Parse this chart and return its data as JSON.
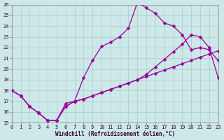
{
  "xlabel": "Windchill (Refroidissement éolien,°C)",
  "xlim": [
    0,
    23
  ],
  "ylim": [
    15,
    26
  ],
  "xticks": [
    0,
    1,
    2,
    3,
    4,
    5,
    6,
    7,
    8,
    9,
    10,
    11,
    12,
    13,
    14,
    15,
    16,
    17,
    18,
    19,
    20,
    21,
    22,
    23
  ],
  "yticks": [
    15,
    16,
    17,
    18,
    19,
    20,
    21,
    22,
    23,
    24,
    25,
    26
  ],
  "bg_color": "#cde8e8",
  "grid_color": "#aacccc",
  "line_color": "#990099",
  "line1_x": [
    0,
    1,
    2,
    3,
    4,
    5,
    6,
    7,
    8,
    9,
    10,
    11,
    12,
    13,
    14,
    15,
    16,
    17,
    18,
    19,
    20,
    21,
    22,
    23
  ],
  "line1_y": [
    18.0,
    17.5,
    16.5,
    15.9,
    15.2,
    15.2,
    16.8,
    17.0,
    19.2,
    20.8,
    22.1,
    22.5,
    23.0,
    23.8,
    26.2,
    25.7,
    25.2,
    24.3,
    24.0,
    23.2,
    21.8,
    22.0,
    21.8,
    20.8
  ],
  "line2_x": [
    0,
    1,
    2,
    3,
    4,
    5,
    6,
    7,
    8,
    9,
    10,
    11,
    12,
    13,
    14,
    15,
    16,
    17,
    18,
    19,
    20,
    21,
    22,
    23
  ],
  "line2_y": [
    18.0,
    17.5,
    16.5,
    15.9,
    15.2,
    15.2,
    16.5,
    17.0,
    17.2,
    17.5,
    17.8,
    18.1,
    18.4,
    18.7,
    19.0,
    19.3,
    19.6,
    19.9,
    20.2,
    20.5,
    20.8,
    21.1,
    21.4,
    21.7
  ],
  "line3_x": [
    0,
    1,
    2,
    3,
    4,
    5,
    6,
    7,
    8,
    9,
    10,
    11,
    12,
    13,
    14,
    15,
    16,
    17,
    18,
    19,
    20,
    21,
    22,
    23
  ],
  "line3_y": [
    18.0,
    17.5,
    16.5,
    15.9,
    15.2,
    15.2,
    16.5,
    17.0,
    17.2,
    17.5,
    17.8,
    18.1,
    18.4,
    18.7,
    19.0,
    19.5,
    20.2,
    20.9,
    21.6,
    22.3,
    23.2,
    23.0,
    22.0,
    19.2
  ],
  "marker": "D",
  "markersize": 2.5,
  "lw": 0.9,
  "tick_fontsize": 5,
  "xlabel_fontsize": 5.5
}
